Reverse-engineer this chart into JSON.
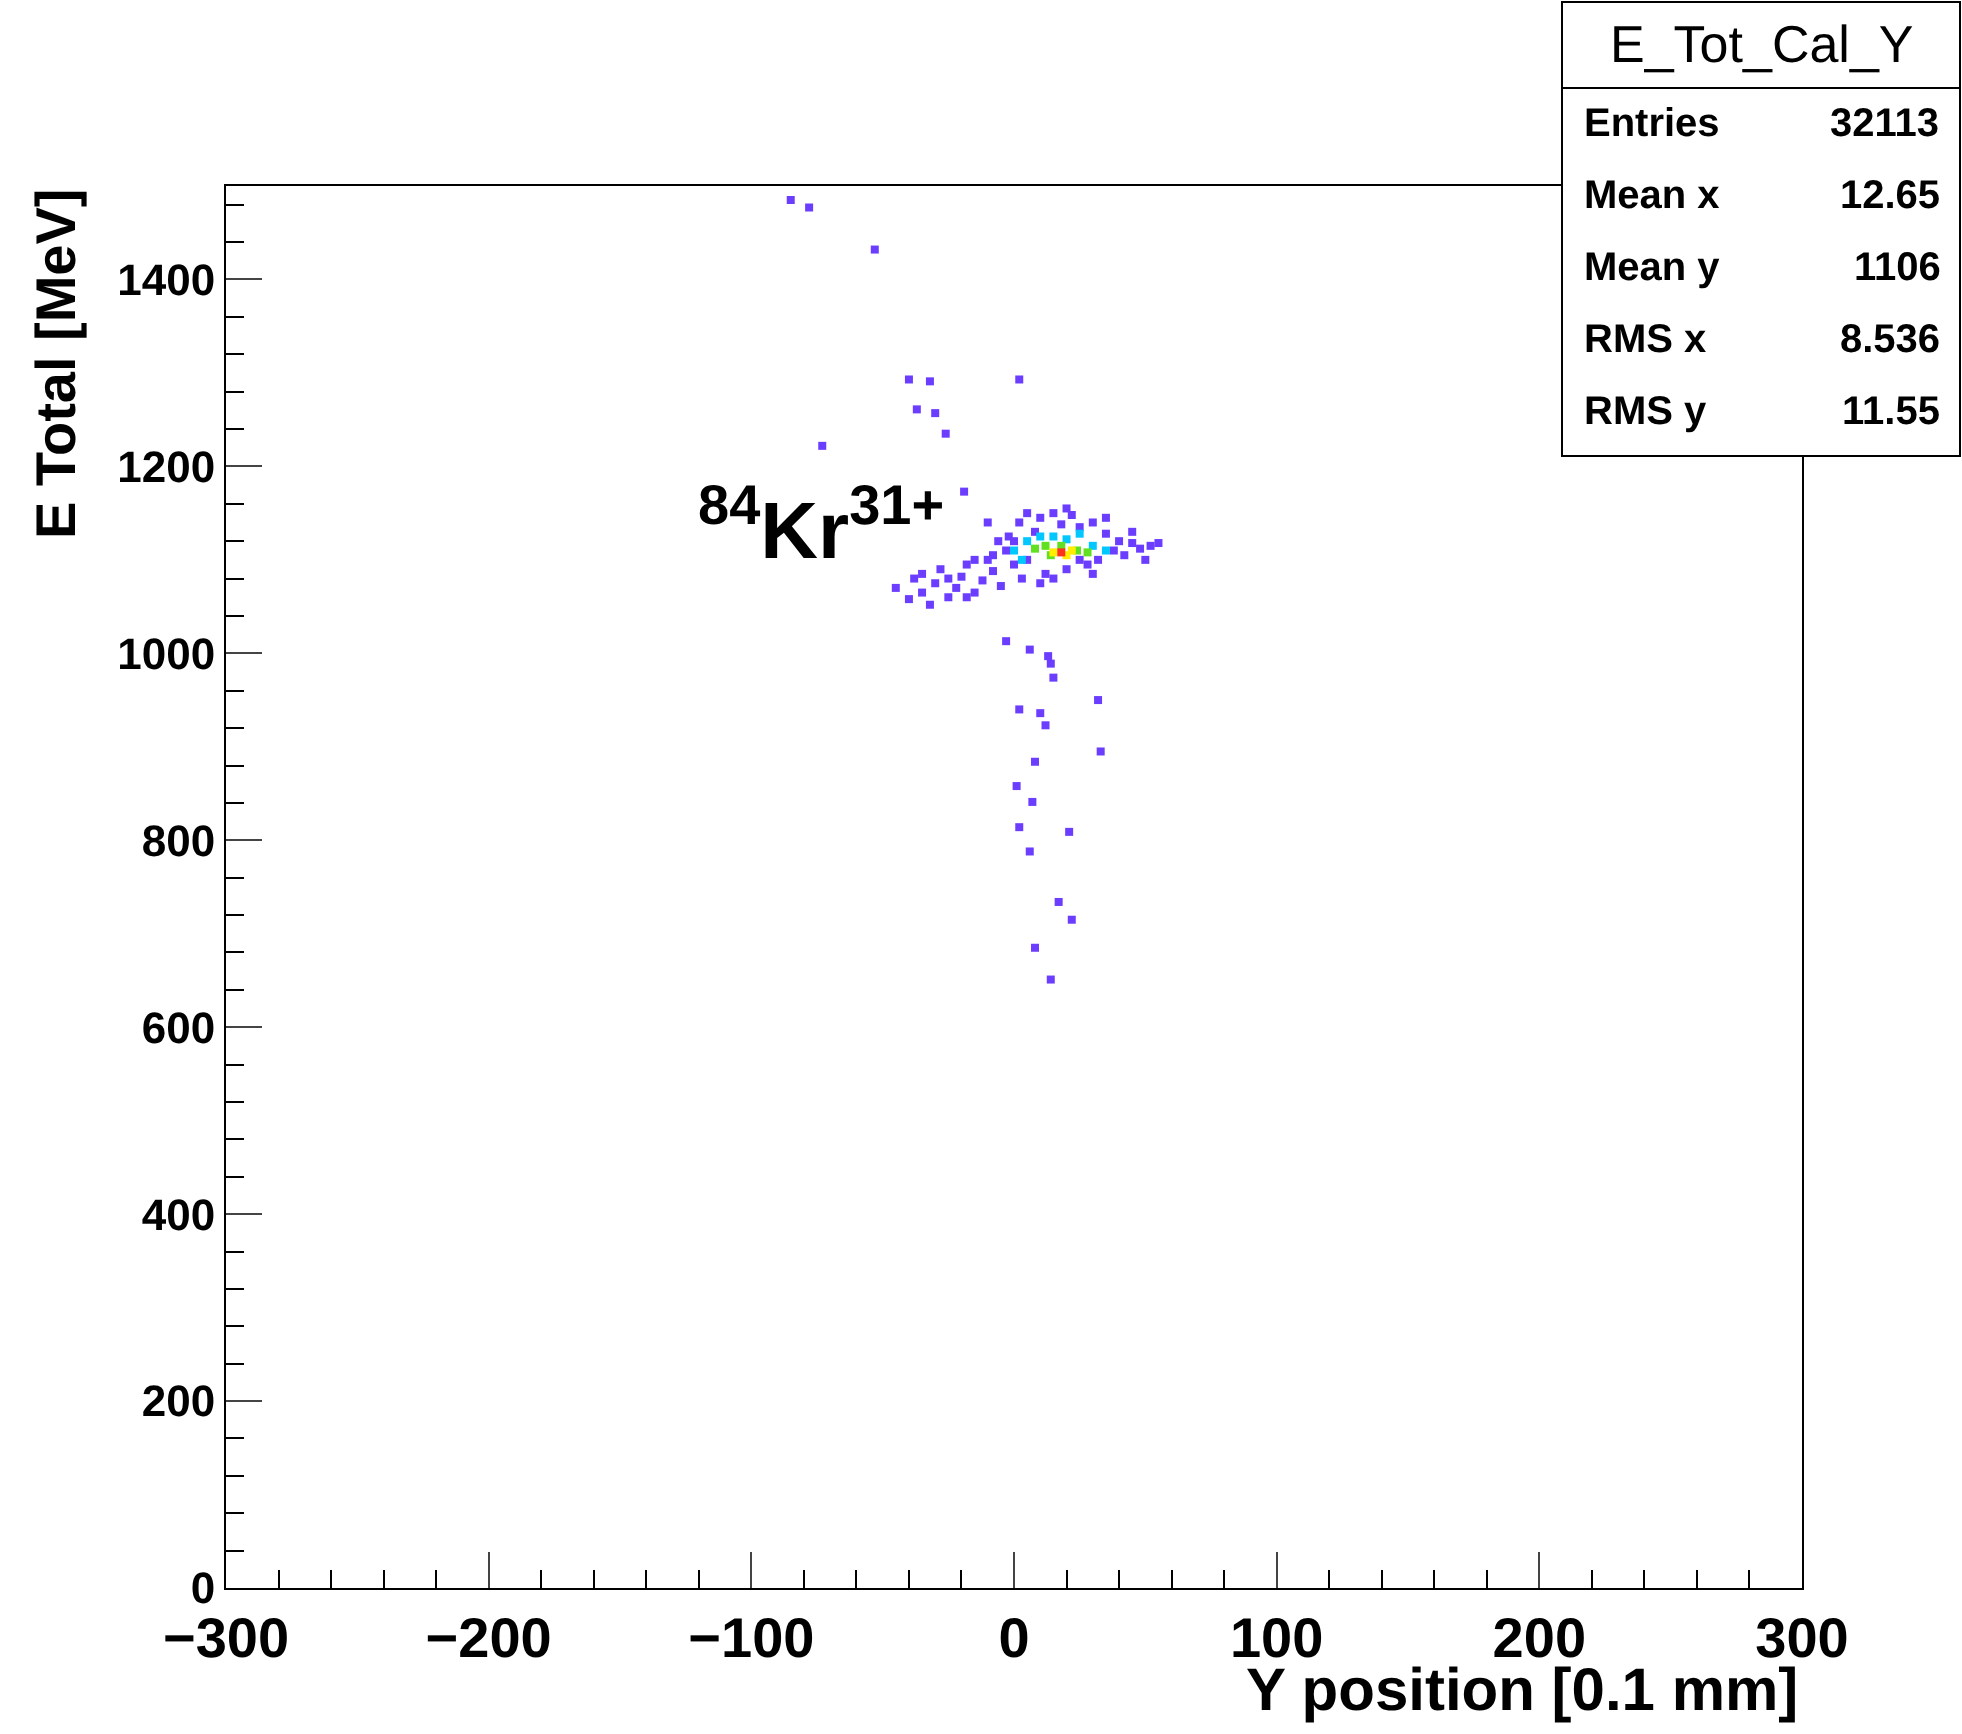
{
  "chart_data": {
    "type": "scatter",
    "title": "E_Tot_Cal_Y",
    "xlabel": "Y position [0.1 mm]",
    "ylabel": "E Total [MeV]",
    "xlim": [
      -300,
      300
    ],
    "xticks": [
      {
        "value": -300,
        "label": "−300"
      },
      {
        "value": -200,
        "label": "−200"
      },
      {
        "value": -100,
        "label": "−100"
      },
      0,
      100,
      200,
      300
    ],
    "ylim": [
      0,
      1500
    ],
    "yticks": [
      0,
      200,
      400,
      600,
      800,
      1000,
      1200,
      1400
    ],
    "grid": false,
    "marker": "square",
    "annotations": [
      "$^{84}$Kr$^{31+}$",
      "Entries",
      "32113",
      "Mean x",
      "12.65",
      "Mean y",
      "1106",
      "RMS x",
      "8.536",
      "RMS y",
      "11.55"
    ],
    "series": [
      {
        "color": "#6b3dff",
        "x": [
          -85,
          -78,
          -53,
          -73,
          -40,
          -32,
          -37,
          -30,
          -26,
          2,
          -19,
          -3,
          6,
          13,
          14,
          15,
          32,
          2,
          10,
          12,
          33,
          8,
          1,
          7,
          2,
          21,
          6,
          17,
          22,
          8,
          14,
          -45,
          -40,
          -38,
          -35,
          -32,
          -30,
          -28,
          -25,
          -22,
          -20,
          -18,
          -15,
          -12,
          -10,
          -8,
          -5,
          -3,
          -2,
          0,
          2,
          3,
          5,
          8,
          10,
          12,
          15,
          18,
          20,
          22,
          25,
          28,
          30,
          32,
          35,
          38,
          40,
          42,
          45,
          48,
          52,
          55,
          -6,
          -8,
          0,
          5,
          30,
          25,
          15,
          -18,
          -25,
          -35,
          -15,
          10,
          35,
          -10,
          20,
          45,
          50
        ],
        "values": [
          1485,
          1477,
          1432,
          1222,
          1293,
          1291,
          1261,
          1257,
          1235,
          1293,
          1173,
          1013,
          1004,
          997,
          989,
          974,
          950,
          940,
          936,
          923,
          895,
          884,
          858,
          841,
          814,
          809,
          788,
          734,
          715,
          685,
          651,
          1070,
          1058,
          1080,
          1065,
          1052,
          1075,
          1090,
          1060,
          1070,
          1082,
          1095,
          1065,
          1078,
          1100,
          1088,
          1072,
          1110,
          1125,
          1095,
          1140,
          1080,
          1150,
          1130,
          1145,
          1085,
          1150,
          1138,
          1090,
          1148,
          1135,
          1095,
          1140,
          1100,
          1128,
          1110,
          1120,
          1105,
          1118,
          1112,
          1115,
          1118,
          1120,
          1105,
          1120,
          1100,
          1085,
          1100,
          1080,
          1060,
          1080,
          1085,
          1100,
          1075,
          1145,
          1140,
          1155,
          1130,
          1100
        ]
      },
      {
        "color": "#00c8ff",
        "x": [
          0,
          5,
          10,
          15,
          20,
          30,
          35,
          3,
          25
        ],
        "values": [
          1110,
          1120,
          1125,
          1125,
          1122,
          1115,
          1110,
          1100,
          1128
        ]
      },
      {
        "color": "#60e020",
        "x": [
          8,
          12,
          18,
          24,
          28,
          14
        ],
        "values": [
          1112,
          1115,
          1115,
          1110,
          1108,
          1105
        ]
      },
      {
        "color": "#ffee00",
        "x": [
          15,
          20,
          22
        ],
        "values": [
          1108,
          1105,
          1110
        ]
      },
      {
        "color": "#ff3020",
        "x": [
          18
        ],
        "values": [
          1108
        ]
      }
    ]
  }
}
